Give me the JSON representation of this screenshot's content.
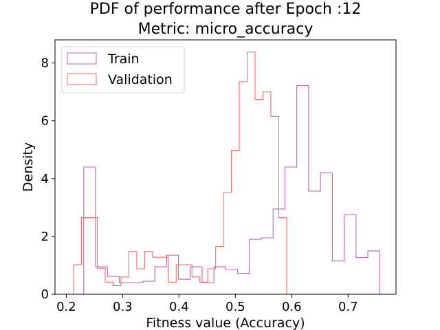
{
  "chart_data": {
    "type": "histogram",
    "title": "PDF of performance after Epoch :12",
    "subtitle": "Metric: micro_accuracy",
    "xlabel": "Fitness value (Accuracy)",
    "ylabel": "Density",
    "xlim": [
      0.18,
      0.785
    ],
    "ylim": [
      0,
      8.8
    ],
    "xticks": [
      0.2,
      0.3,
      0.4,
      0.5,
      0.6,
      0.7
    ],
    "xtick_labels": [
      "0.2",
      "0.3",
      "0.4",
      "0.5",
      "0.6",
      "0.7"
    ],
    "yticks": [
      0,
      2,
      4,
      6,
      8
    ],
    "ytick_labels": [
      "0",
      "2",
      "4",
      "6",
      "8"
    ],
    "grid": false,
    "legend_placement": "top-left",
    "series": [
      {
        "name": "Train",
        "color": "#bf5fbf",
        "edges": [
          0.231,
          0.252,
          0.273,
          0.294,
          0.315,
          0.336,
          0.357,
          0.378,
          0.399,
          0.42,
          0.441,
          0.462,
          0.483,
          0.504,
          0.525,
          0.546,
          0.567,
          0.588,
          0.609,
          0.63,
          0.651,
          0.672,
          0.693,
          0.714,
          0.735,
          0.756
        ],
        "density": [
          4.4,
          0.95,
          0.62,
          0.4,
          0.4,
          0.45,
          0.95,
          1.35,
          0.52,
          0.95,
          0.4,
          0.95,
          0.85,
          0.72,
          1.9,
          1.95,
          2.95,
          4.4,
          7.22,
          3.57,
          4.2,
          1.15,
          2.75,
          1.27,
          1.5
        ]
      },
      {
        "name": "Validation",
        "color": "#ff6666",
        "edges": [
          0.213,
          0.227,
          0.241,
          0.255,
          0.269,
          0.283,
          0.297,
          0.311,
          0.325,
          0.339,
          0.353,
          0.367,
          0.381,
          0.395,
          0.409,
          0.423,
          0.437,
          0.451,
          0.465,
          0.479,
          0.493,
          0.507,
          0.521,
          0.535,
          0.549,
          0.563,
          0.577,
          0.591
        ],
        "density": [
          1.02,
          2.65,
          2.65,
          0.9,
          0.42,
          0.3,
          0.6,
          1.48,
          0.88,
          1.48,
          1.28,
          1.28,
          0.42,
          1.02,
          1.02,
          0.6,
          0.42,
          0.88,
          1.65,
          3.52,
          4.98,
          7.35,
          8.38,
          6.74,
          7.0,
          6.15,
          2.65
        ]
      }
    ]
  }
}
